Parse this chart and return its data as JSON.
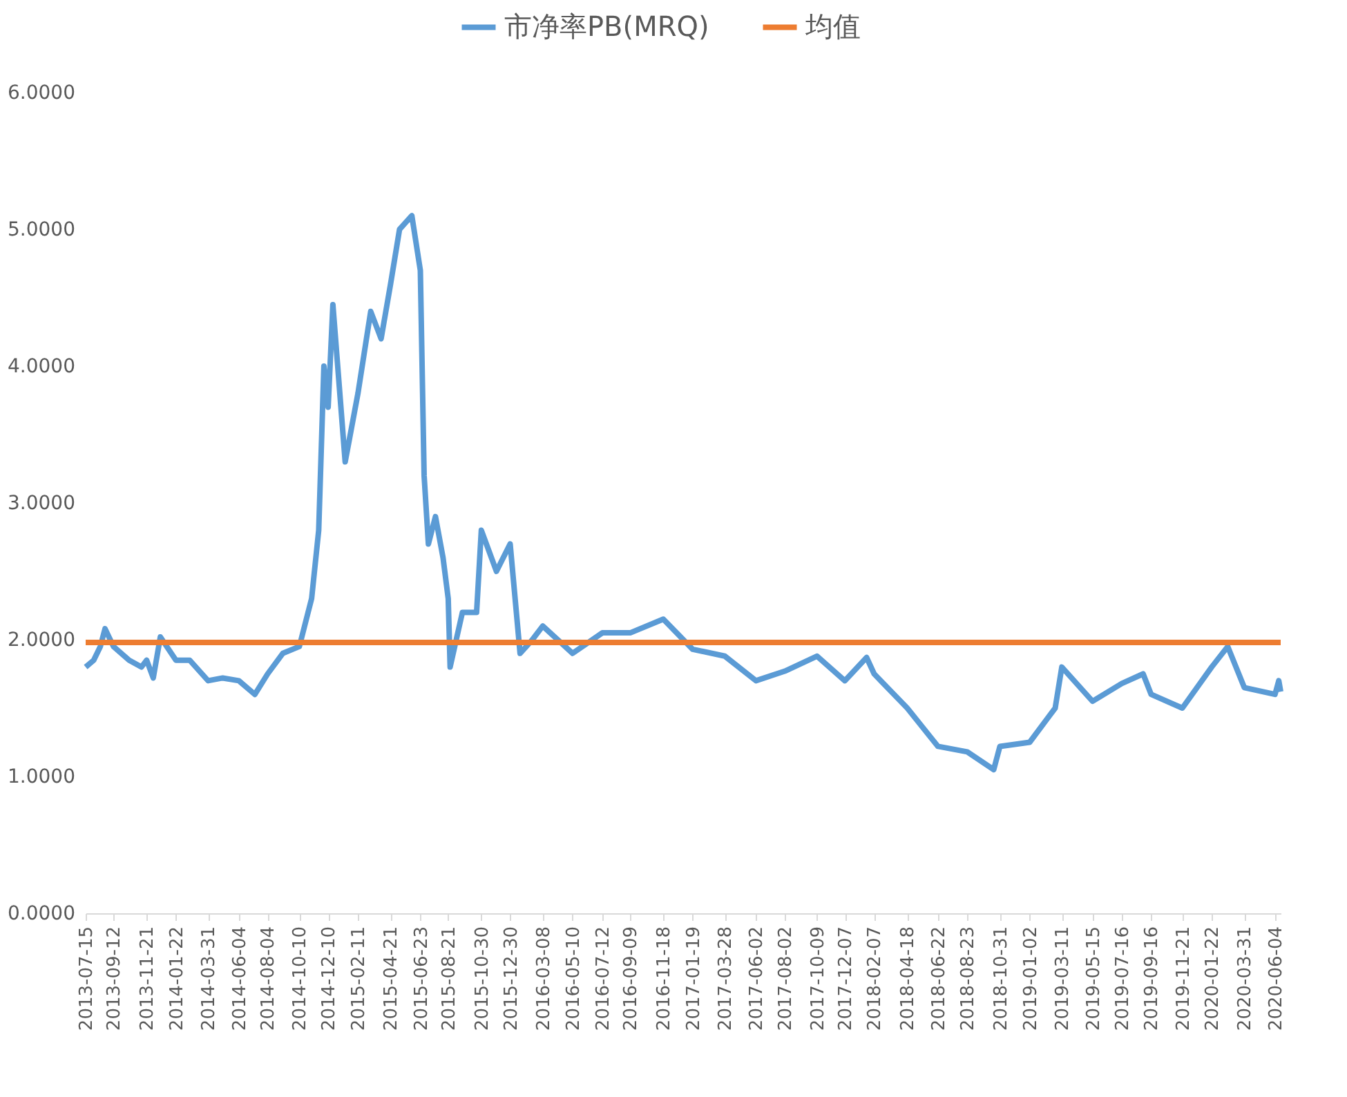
{
  "chart_data": {
    "type": "line",
    "legend": "top",
    "grid": false,
    "marker": "none",
    "line_style": "solid",
    "x": [
      "2013-07-15",
      "2013-08-01",
      "2013-08-15",
      "2013-08-25",
      "2013-09-12",
      "2013-10-15",
      "2013-11-10",
      "2013-11-21",
      "2013-12-05",
      "2013-12-20",
      "2014-01-22",
      "2014-02-20",
      "2014-03-31",
      "2014-05-01",
      "2014-06-04",
      "2014-07-08",
      "2014-08-04",
      "2014-09-05",
      "2014-10-10",
      "2014-11-05",
      "2014-11-20",
      "2014-12-01",
      "2014-12-10",
      "2014-12-20",
      "2015-01-15",
      "2015-02-11",
      "2015-03-10",
      "2015-04-01",
      "2015-04-21",
      "2015-05-10",
      "2015-06-05",
      "2015-06-23",
      "2015-07-01",
      "2015-07-10",
      "2015-07-25",
      "2015-08-10",
      "2015-08-21",
      "2015-08-25",
      "2015-09-20",
      "2015-10-20",
      "2015-10-30",
      "2015-12-01",
      "2015-12-30",
      "2016-01-20",
      "2016-02-15",
      "2016-03-08",
      "2016-05-10",
      "2016-07-12",
      "2016-09-09",
      "2016-11-18",
      "2017-01-19",
      "2017-03-28",
      "2017-06-02",
      "2017-08-02",
      "2017-10-09",
      "2017-12-07",
      "2018-01-22",
      "2018-02-07",
      "2018-04-18",
      "2018-06-22",
      "2018-08-23",
      "2018-10-18",
      "2018-10-31",
      "2019-01-02",
      "2019-02-25",
      "2019-03-11",
      "2019-05-15",
      "2019-07-16",
      "2019-08-30",
      "2019-09-16",
      "2019-11-21",
      "2020-01-22",
      "2020-02-25",
      "2020-03-31",
      "2020-06-04",
      "2020-06-12",
      "2020-06-16"
    ],
    "ylim": [
      0,
      6
    ],
    "yticks": [
      {
        "value": 0,
        "label": "0.0000"
      },
      {
        "value": 1,
        "label": "1.0000"
      },
      {
        "value": 2,
        "label": "2.0000"
      },
      {
        "value": 3,
        "label": "3.0000"
      },
      {
        "value": 4,
        "label": "4.0000"
      },
      {
        "value": 5,
        "label": "5.0000"
      },
      {
        "value": 6,
        "label": "6.0000"
      }
    ],
    "xlim": [
      "2013-07-15",
      "2020-06-16"
    ],
    "xticks": [
      "2013-07-15",
      "2013-09-12",
      "2013-11-21",
      "2014-01-22",
      "2014-03-31",
      "2014-06-04",
      "2014-08-04",
      "2014-10-10",
      "2014-12-10",
      "2015-02-11",
      "2015-04-21",
      "2015-06-23",
      "2015-08-21",
      "2015-10-30",
      "2015-12-30",
      "2016-03-08",
      "2016-05-10",
      "2016-07-12",
      "2016-09-09",
      "2016-11-18",
      "2017-01-19",
      "2017-03-28",
      "2017-06-02",
      "2017-08-02",
      "2017-10-09",
      "2017-12-07",
      "2018-02-07",
      "2018-04-18",
      "2018-06-22",
      "2018-08-23",
      "2018-10-31",
      "2019-01-02",
      "2019-03-11",
      "2019-05-15",
      "2019-07-16",
      "2019-09-16",
      "2019-11-21",
      "2020-01-22",
      "2020-03-31",
      "2020-06-04"
    ],
    "series": [
      {
        "name": "市净率PB(MRQ)",
        "color": "#5b9bd5",
        "values": [
          1.8,
          1.85,
          1.95,
          2.08,
          1.95,
          1.85,
          1.8,
          1.85,
          1.72,
          2.02,
          1.85,
          1.85,
          1.7,
          1.72,
          1.7,
          1.6,
          1.75,
          1.9,
          1.95,
          2.3,
          2.8,
          4.0,
          3.7,
          4.45,
          3.3,
          3.8,
          4.4,
          4.2,
          4.6,
          5.0,
          5.1,
          4.7,
          3.2,
          2.7,
          2.9,
          2.6,
          2.3,
          1.8,
          2.2,
          2.2,
          2.8,
          2.5,
          2.7,
          1.9,
          2.0,
          2.1,
          1.9,
          2.05,
          2.05,
          2.15,
          1.93,
          1.88,
          1.7,
          1.77,
          1.88,
          1.7,
          1.87,
          1.75,
          1.5,
          1.22,
          1.18,
          1.05,
          1.22,
          1.25,
          1.5,
          1.8,
          1.55,
          1.68,
          1.75,
          1.6,
          1.5,
          1.8,
          1.95,
          1.65,
          1.6,
          1.7,
          1.62
        ]
      },
      {
        "name": "均值",
        "color": "#ed7d31",
        "x": [
          "2013-07-15",
          "2020-06-16"
        ],
        "values": [
          1.98,
          1.98
        ]
      }
    ]
  }
}
